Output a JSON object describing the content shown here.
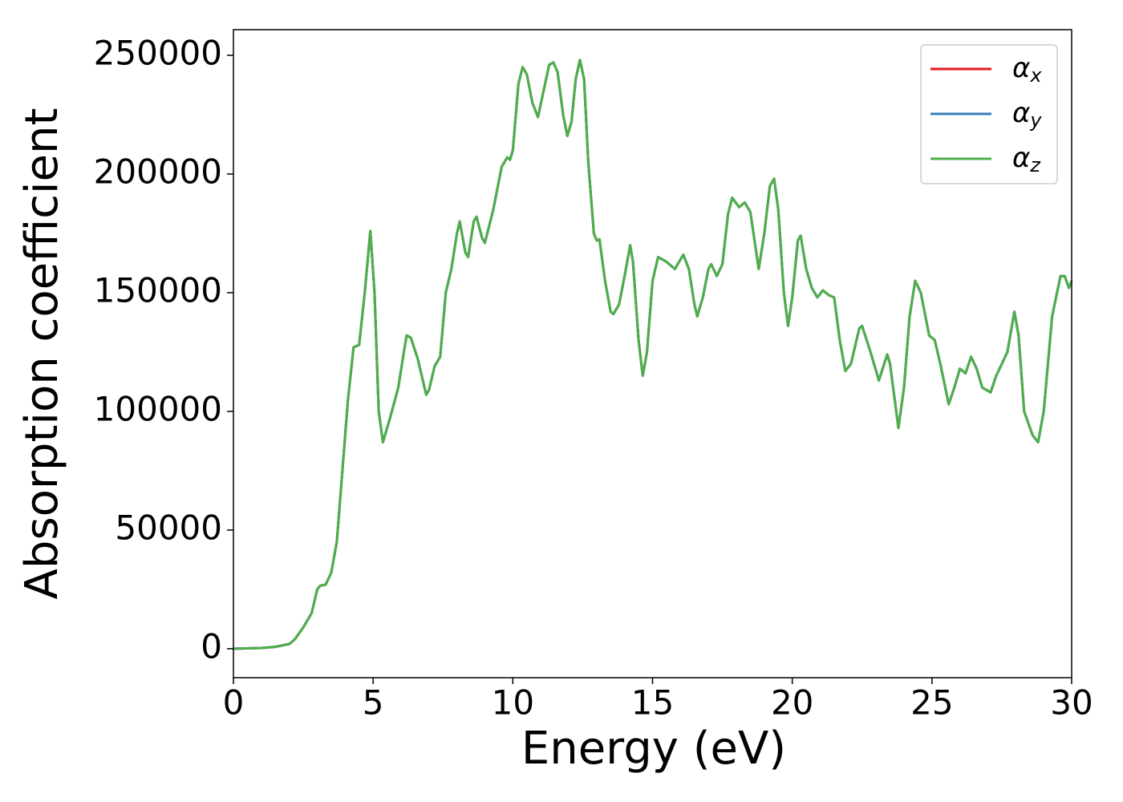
{
  "chart_data": {
    "type": "line",
    "xlabel": "Energy (eV)",
    "ylabel": "Absorption coefficient",
    "x": [
      0,
      1,
      1.5,
      2,
      2.2,
      2.5,
      2.8,
      3.0,
      3.1,
      3.3,
      3.5,
      3.7,
      3.9,
      4.1,
      4.3,
      4.5,
      4.7,
      4.9,
      5.05,
      5.2,
      5.35,
      5.6,
      5.9,
      6.1,
      6.2,
      6.35,
      6.6,
      6.9,
      7.0,
      7.2,
      7.4,
      7.6,
      7.8,
      8.0,
      8.1,
      8.3,
      8.4,
      8.6,
      8.7,
      8.9,
      9.0,
      9.3,
      9.6,
      9.8,
      9.9,
      10.0,
      10.2,
      10.35,
      10.5,
      10.7,
      10.9,
      11.1,
      11.3,
      11.45,
      11.6,
      11.8,
      11.95,
      12.1,
      12.25,
      12.4,
      12.55,
      12.7,
      12.9,
      13.0,
      13.1,
      13.3,
      13.5,
      13.6,
      13.8,
      14.0,
      14.2,
      14.3,
      14.5,
      14.65,
      14.8,
      15.0,
      15.2,
      15.5,
      15.8,
      16.1,
      16.3,
      16.5,
      16.6,
      16.8,
      17.0,
      17.1,
      17.3,
      17.5,
      17.7,
      17.85,
      18.1,
      18.3,
      18.5,
      18.8,
      19.0,
      19.2,
      19.35,
      19.5,
      19.7,
      19.85,
      20.0,
      20.2,
      20.3,
      20.5,
      20.7,
      20.9,
      21.1,
      21.3,
      21.5,
      21.7,
      21.9,
      22.1,
      22.4,
      22.5,
      22.8,
      23.0,
      23.1,
      23.4,
      23.5,
      23.8,
      24.0,
      24.2,
      24.4,
      24.6,
      24.9,
      25.1,
      25.3,
      25.6,
      25.8,
      26.0,
      26.2,
      26.4,
      26.6,
      26.8,
      27.1,
      27.3,
      27.5,
      27.7,
      27.95,
      28.1,
      28.3,
      28.6,
      28.8,
      29.0,
      29.3,
      29.6,
      29.75,
      29.9,
      30.0
    ],
    "series": [
      {
        "name": "αx",
        "color": "#e41a1c",
        "values": [
          0,
          300,
          800,
          2000,
          4000,
          9000,
          15000,
          25000,
          26500,
          27000,
          32000,
          45000,
          75000,
          105000,
          127000,
          128000,
          150000,
          176000,
          150000,
          100000,
          87000,
          97000,
          110000,
          125000,
          132000,
          131000,
          122000,
          107000,
          109000,
          119000,
          123000,
          150000,
          160000,
          175000,
          180000,
          167000,
          165000,
          180000,
          182000,
          173000,
          171000,
          185000,
          203000,
          207000,
          206000,
          210000,
          238000,
          245000,
          242000,
          230000,
          224000,
          235000,
          246000,
          247000,
          243000,
          225000,
          216000,
          222000,
          240000,
          248000,
          240000,
          205000,
          175000,
          172000,
          172500,
          155000,
          142000,
          141000,
          145000,
          157000,
          170000,
          163000,
          130000,
          115000,
          125000,
          155000,
          165000,
          163000,
          160000,
          166000,
          160000,
          145000,
          140000,
          148000,
          160000,
          162000,
          157000,
          162000,
          183000,
          190000,
          186000,
          188000,
          184000,
          160000,
          175000,
          195000,
          198000,
          185000,
          150000,
          136000,
          148000,
          172000,
          174000,
          160000,
          152000,
          148000,
          151000,
          149000,
          148000,
          130000,
          117000,
          120000,
          135000,
          136000,
          125000,
          117000,
          113000,
          124000,
          120000,
          93000,
          110000,
          140000,
          155000,
          150000,
          132000,
          130000,
          120000,
          103000,
          110000,
          118000,
          116000,
          123000,
          118000,
          110000,
          108000,
          115000,
          120000,
          125000,
          142000,
          132000,
          100000,
          90000,
          87000,
          100000,
          140000,
          157000,
          157000,
          152000,
          155000
        ]
      },
      {
        "name": "αy",
        "color": "#377eb8",
        "values": [
          0,
          300,
          800,
          2000,
          4000,
          9000,
          15000,
          25000,
          26500,
          27000,
          32000,
          45000,
          75000,
          105000,
          127000,
          128000,
          150000,
          176000,
          150000,
          100000,
          87000,
          97000,
          110000,
          125000,
          132000,
          131000,
          122000,
          107000,
          109000,
          119000,
          123000,
          150000,
          160000,
          175000,
          180000,
          167000,
          165000,
          180000,
          182000,
          173000,
          171000,
          185000,
          203000,
          207000,
          206000,
          210000,
          238000,
          245000,
          242000,
          230000,
          224000,
          235000,
          246000,
          247000,
          243000,
          225000,
          216000,
          222000,
          240000,
          248000,
          240000,
          205000,
          175000,
          172000,
          172500,
          155000,
          142000,
          141000,
          145000,
          157000,
          170000,
          163000,
          130000,
          115000,
          125000,
          155000,
          165000,
          163000,
          160000,
          166000,
          160000,
          145000,
          140000,
          148000,
          160000,
          162000,
          157000,
          162000,
          183000,
          190000,
          186000,
          188000,
          184000,
          160000,
          175000,
          195000,
          198000,
          185000,
          150000,
          136000,
          148000,
          172000,
          174000,
          160000,
          152000,
          148000,
          151000,
          149000,
          148000,
          130000,
          117000,
          120000,
          135000,
          136000,
          125000,
          117000,
          113000,
          124000,
          120000,
          93000,
          110000,
          140000,
          155000,
          150000,
          132000,
          130000,
          120000,
          103000,
          110000,
          118000,
          116000,
          123000,
          118000,
          110000,
          108000,
          115000,
          120000,
          125000,
          142000,
          132000,
          100000,
          90000,
          87000,
          100000,
          140000,
          157000,
          157000,
          152000,
          155000
        ]
      },
      {
        "name": "αz",
        "color": "#4daf4a",
        "values": [
          0,
          300,
          800,
          2000,
          4000,
          9000,
          15000,
          25000,
          26500,
          27000,
          32000,
          45000,
          75000,
          105000,
          127000,
          128000,
          150000,
          176000,
          150000,
          100000,
          87000,
          97000,
          110000,
          125000,
          132000,
          131000,
          122000,
          107000,
          109000,
          119000,
          123000,
          150000,
          160000,
          175000,
          180000,
          167000,
          165000,
          180000,
          182000,
          173000,
          171000,
          185000,
          203000,
          207000,
          206000,
          210000,
          238000,
          245000,
          242000,
          230000,
          224000,
          235000,
          246000,
          247000,
          243000,
          225000,
          216000,
          222000,
          240000,
          248000,
          240000,
          205000,
          175000,
          172000,
          172500,
          155000,
          142000,
          141000,
          145000,
          157000,
          170000,
          163000,
          130000,
          115000,
          125000,
          155000,
          165000,
          163000,
          160000,
          166000,
          160000,
          145000,
          140000,
          148000,
          160000,
          162000,
          157000,
          162000,
          183000,
          190000,
          186000,
          188000,
          184000,
          160000,
          175000,
          195000,
          198000,
          185000,
          150000,
          136000,
          148000,
          172000,
          174000,
          160000,
          152000,
          148000,
          151000,
          149000,
          148000,
          130000,
          117000,
          120000,
          135000,
          136000,
          125000,
          117000,
          113000,
          124000,
          120000,
          93000,
          110000,
          140000,
          155000,
          150000,
          132000,
          130000,
          120000,
          103000,
          110000,
          118000,
          116000,
          123000,
          118000,
          110000,
          108000,
          115000,
          120000,
          125000,
          142000,
          132000,
          100000,
          90000,
          87000,
          100000,
          140000,
          157000,
          157000,
          152000,
          155000
        ]
      }
    ],
    "xlim": [
      0,
      30
    ],
    "xticks": [
      0,
      5,
      10,
      15,
      20,
      25,
      30
    ],
    "ylim": [
      -12200,
      260800
    ],
    "yticks": [
      0,
      50000,
      100000,
      150000,
      200000,
      250000
    ],
    "grid": false,
    "legend": "upper right"
  }
}
